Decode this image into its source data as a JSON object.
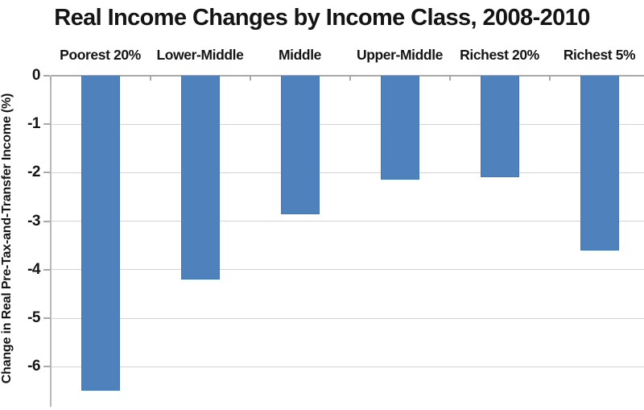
{
  "chart": {
    "title": "Real Income Changes by Income Class, 2008-2010",
    "ylabel": "Change in Real Pre-Tax-and-Transfer Income (%)"
  },
  "chart_data": {
    "type": "bar",
    "title": "Real Income Changes by Income Class, 2008-2010",
    "categories": [
      "Poorest 20%",
      "Lower-Middle",
      "Middle",
      "Upper-Middle",
      "Richest 20%",
      "Richest 5%"
    ],
    "values": [
      -6.5,
      -4.2,
      -2.85,
      -2.15,
      -2.1,
      -3.6
    ],
    "xlabel": "",
    "ylabel": "Change in Real Pre-Tax-and-Transfer Income (%)",
    "ylim": [
      -7,
      0
    ],
    "yticks": [
      0,
      -1,
      -2,
      -3,
      -4,
      -5,
      -6
    ],
    "grid": true,
    "legend": false,
    "category_label_position": "top",
    "orientation": "vertical",
    "colors": {
      "bar_fill": "#4f81bd",
      "bar_border": "#4576ad",
      "gridline": "#d3d3d3",
      "axis_line": "#a9a9a9",
      "y_axis_line": "#b8b8b8",
      "text": "#151515",
      "background": "#ffffff"
    }
  }
}
